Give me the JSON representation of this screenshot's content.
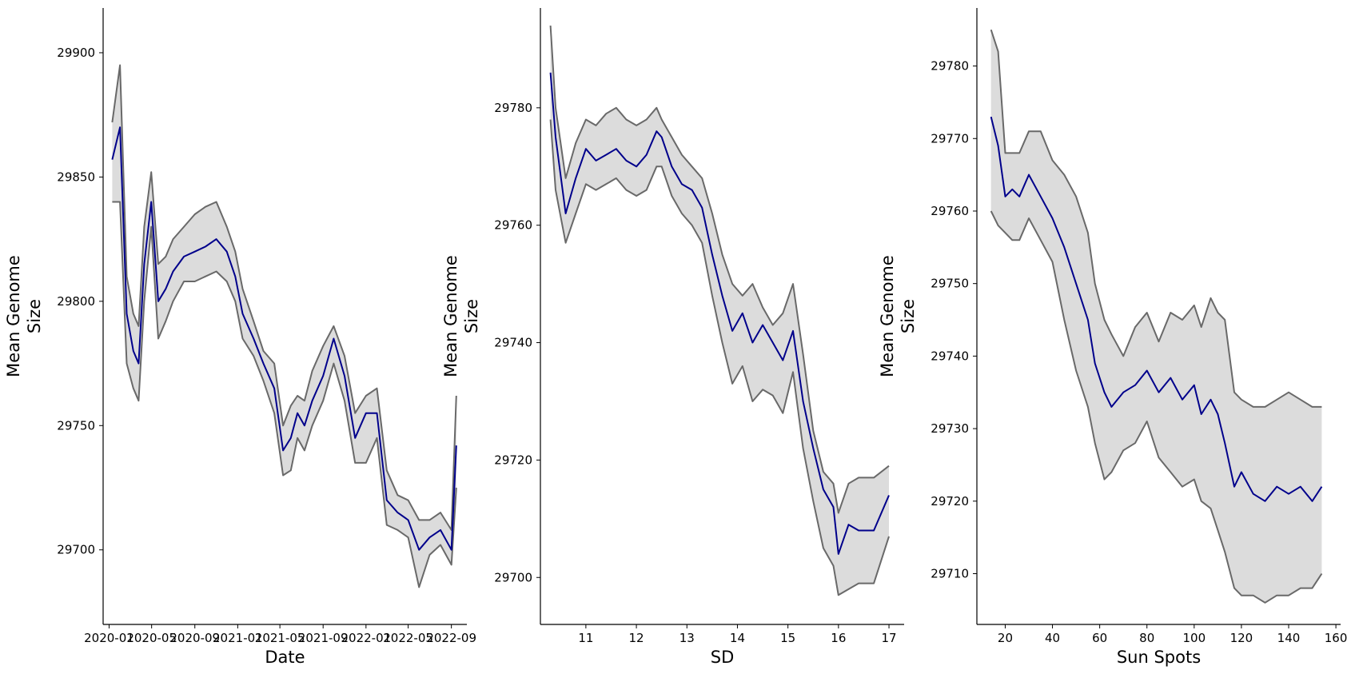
{
  "chart_data": [
    {
      "type": "line",
      "xlabel": "Date",
      "ylabel_lines": [
        "Mean Genome",
        "Size"
      ],
      "x_is_date": true,
      "xlim": [
        "2019-12-15",
        "2022-10-15"
      ],
      "ylim": [
        29670,
        29918
      ],
      "xticks": [
        "2020-01",
        "2020-05",
        "2020-09",
        "2021-01",
        "2021-05",
        "2021-09",
        "2022-01",
        "2022-05",
        "2022-09"
      ],
      "yticks": [
        29700,
        29750,
        29800,
        29850,
        29900
      ],
      "colors": {
        "mean": "#00008b",
        "bounds": "#696969",
        "band": "#dcdcdc"
      },
      "grid": false,
      "x": [
        "2020-01-10",
        "2020-02-01",
        "2020-02-20",
        "2020-03-10",
        "2020-03-25",
        "2020-04-10",
        "2020-04-30",
        "2020-05-20",
        "2020-06-10",
        "2020-07-01",
        "2020-08-01",
        "2020-09-01",
        "2020-10-01",
        "2020-11-01",
        "2020-12-01",
        "2020-12-25",
        "2021-01-15",
        "2021-02-15",
        "2021-03-15",
        "2021-04-15",
        "2021-05-10",
        "2021-06-01",
        "2021-06-20",
        "2021-07-10",
        "2021-08-01",
        "2021-09-01",
        "2021-10-01",
        "2021-11-01",
        "2021-12-01",
        "2022-01-01",
        "2022-02-01",
        "2022-03-01",
        "2022-04-01",
        "2022-05-01",
        "2022-06-01",
        "2022-07-01",
        "2022-08-01",
        "2022-09-01",
        "2022-09-15"
      ],
      "series": [
        {
          "role": "mean",
          "values": [
            29857,
            29870,
            29795,
            29780,
            29775,
            29815,
            29840,
            29800,
            29805,
            29812,
            29818,
            29820,
            29822,
            29825,
            29820,
            29810,
            29795,
            29785,
            29775,
            29765,
            29740,
            29745,
            29755,
            29750,
            29760,
            29770,
            29785,
            29770,
            29745,
            29755,
            29755,
            29720,
            29715,
            29712,
            29700,
            29705,
            29708,
            29700,
            29742
          ]
        },
        {
          "role": "upper",
          "values": [
            29872,
            29895,
            29810,
            29795,
            29790,
            29830,
            29852,
            29815,
            29818,
            29825,
            29830,
            29835,
            29838,
            29840,
            29830,
            29820,
            29805,
            29792,
            29780,
            29775,
            29750,
            29758,
            29762,
            29760,
            29772,
            29782,
            29790,
            29778,
            29755,
            29762,
            29765,
            29732,
            29722,
            29720,
            29712,
            29712,
            29715,
            29708,
            29762
          ]
        },
        {
          "role": "lower",
          "values": [
            29840,
            29840,
            29775,
            29765,
            29760,
            29800,
            29830,
            29785,
            29792,
            29800,
            29808,
            29808,
            29810,
            29812,
            29808,
            29800,
            29785,
            29778,
            29768,
            29755,
            29730,
            29732,
            29745,
            29740,
            29750,
            29760,
            29775,
            29760,
            29735,
            29735,
            29745,
            29710,
            29708,
            29705,
            29685,
            29698,
            29702,
            29694,
            29725
          ]
        }
      ]
    },
    {
      "type": "line",
      "xlabel": "SD",
      "ylabel_lines": [
        "Mean Genome",
        "Size"
      ],
      "xlim": [
        10.1,
        17.3
      ],
      "ylim": [
        29692,
        29797
      ],
      "xticks": [
        11,
        12,
        13,
        14,
        15,
        16,
        17
      ],
      "yticks": [
        29700,
        29720,
        29740,
        29760,
        29780
      ],
      "colors": {
        "mean": "#00008b",
        "bounds": "#696969",
        "band": "#dcdcdc"
      },
      "grid": false,
      "x": [
        10.3,
        10.4,
        10.6,
        10.8,
        11.0,
        11.2,
        11.4,
        11.6,
        11.8,
        12.0,
        12.2,
        12.4,
        12.5,
        12.7,
        12.9,
        13.1,
        13.3,
        13.5,
        13.7,
        13.9,
        14.1,
        14.3,
        14.5,
        14.7,
        14.9,
        15.1,
        15.3,
        15.5,
        15.7,
        15.9,
        16.0,
        16.2,
        16.4,
        16.7,
        17.0
      ],
      "series": [
        {
          "role": "mean",
          "values": [
            29786,
            29775,
            29762,
            29768,
            29773,
            29771,
            29772,
            29773,
            29771,
            29770,
            29772,
            29776,
            29775,
            29770,
            29767,
            29766,
            29763,
            29755,
            29748,
            29742,
            29745,
            29740,
            29743,
            29740,
            29737,
            29742,
            29730,
            29722,
            29715,
            29712,
            29704,
            29709,
            29708,
            29708,
            29714
          ]
        },
        {
          "role": "upper",
          "values": [
            29794,
            29780,
            29768,
            29774,
            29778,
            29777,
            29779,
            29780,
            29778,
            29777,
            29778,
            29780,
            29778,
            29775,
            29772,
            29770,
            29768,
            29762,
            29755,
            29750,
            29748,
            29750,
            29746,
            29743,
            29745,
            29750,
            29738,
            29725,
            29718,
            29716,
            29711,
            29716,
            29717,
            29717,
            29719
          ]
        },
        {
          "role": "lower",
          "values": [
            29778,
            29766,
            29757,
            29762,
            29767,
            29766,
            29767,
            29768,
            29766,
            29765,
            29766,
            29770,
            29770,
            29765,
            29762,
            29760,
            29757,
            29748,
            29740,
            29733,
            29736,
            29730,
            29732,
            29731,
            29728,
            29735,
            29722,
            29713,
            29705,
            29702,
            29697,
            29698,
            29699,
            29699,
            29707
          ]
        }
      ]
    },
    {
      "type": "line",
      "xlabel": "Sun Spots",
      "ylabel_lines": [
        "Mean Genome",
        "Size"
      ],
      "xlim": [
        8,
        162
      ],
      "ylim": [
        29703,
        29788
      ],
      "xticks": [
        20,
        40,
        60,
        80,
        100,
        120,
        140,
        160
      ],
      "yticks": [
        29710,
        29720,
        29730,
        29740,
        29750,
        29760,
        29770,
        29780
      ],
      "colors": {
        "mean": "#00008b",
        "bounds": "#696969",
        "band": "#dcdcdc"
      },
      "grid": false,
      "x": [
        14,
        17,
        20,
        23,
        26,
        30,
        35,
        40,
        45,
        50,
        55,
        58,
        62,
        65,
        70,
        75,
        80,
        85,
        90,
        95,
        100,
        103,
        107,
        110,
        113,
        117,
        120,
        125,
        130,
        135,
        140,
        145,
        150,
        154
      ],
      "series": [
        {
          "role": "mean",
          "values": [
            29773,
            29769,
            29762,
            29763,
            29762,
            29765,
            29762,
            29759,
            29755,
            29750,
            29745,
            29739,
            29735,
            29733,
            29735,
            29736,
            29738,
            29735,
            29737,
            29734,
            29736,
            29732,
            29734,
            29732,
            29728,
            29722,
            29724,
            29721,
            29720,
            29722,
            29721,
            29722,
            29720,
            29722
          ]
        },
        {
          "role": "upper",
          "values": [
            29785,
            29782,
            29768,
            29768,
            29768,
            29771,
            29771,
            29767,
            29765,
            29762,
            29757,
            29750,
            29745,
            29743,
            29740,
            29744,
            29746,
            29742,
            29746,
            29745,
            29747,
            29744,
            29748,
            29746,
            29745,
            29735,
            29734,
            29733,
            29733,
            29734,
            29735,
            29734,
            29733,
            29733
          ]
        },
        {
          "role": "lower",
          "values": [
            29760,
            29758,
            29757,
            29756,
            29756,
            29759,
            29756,
            29753,
            29745,
            29738,
            29733,
            29728,
            29723,
            29724,
            29727,
            29728,
            29731,
            29726,
            29724,
            29722,
            29723,
            29720,
            29719,
            29716,
            29713,
            29708,
            29707,
            29707,
            29706,
            29707,
            29707,
            29708,
            29708,
            29710
          ]
        }
      ]
    }
  ]
}
